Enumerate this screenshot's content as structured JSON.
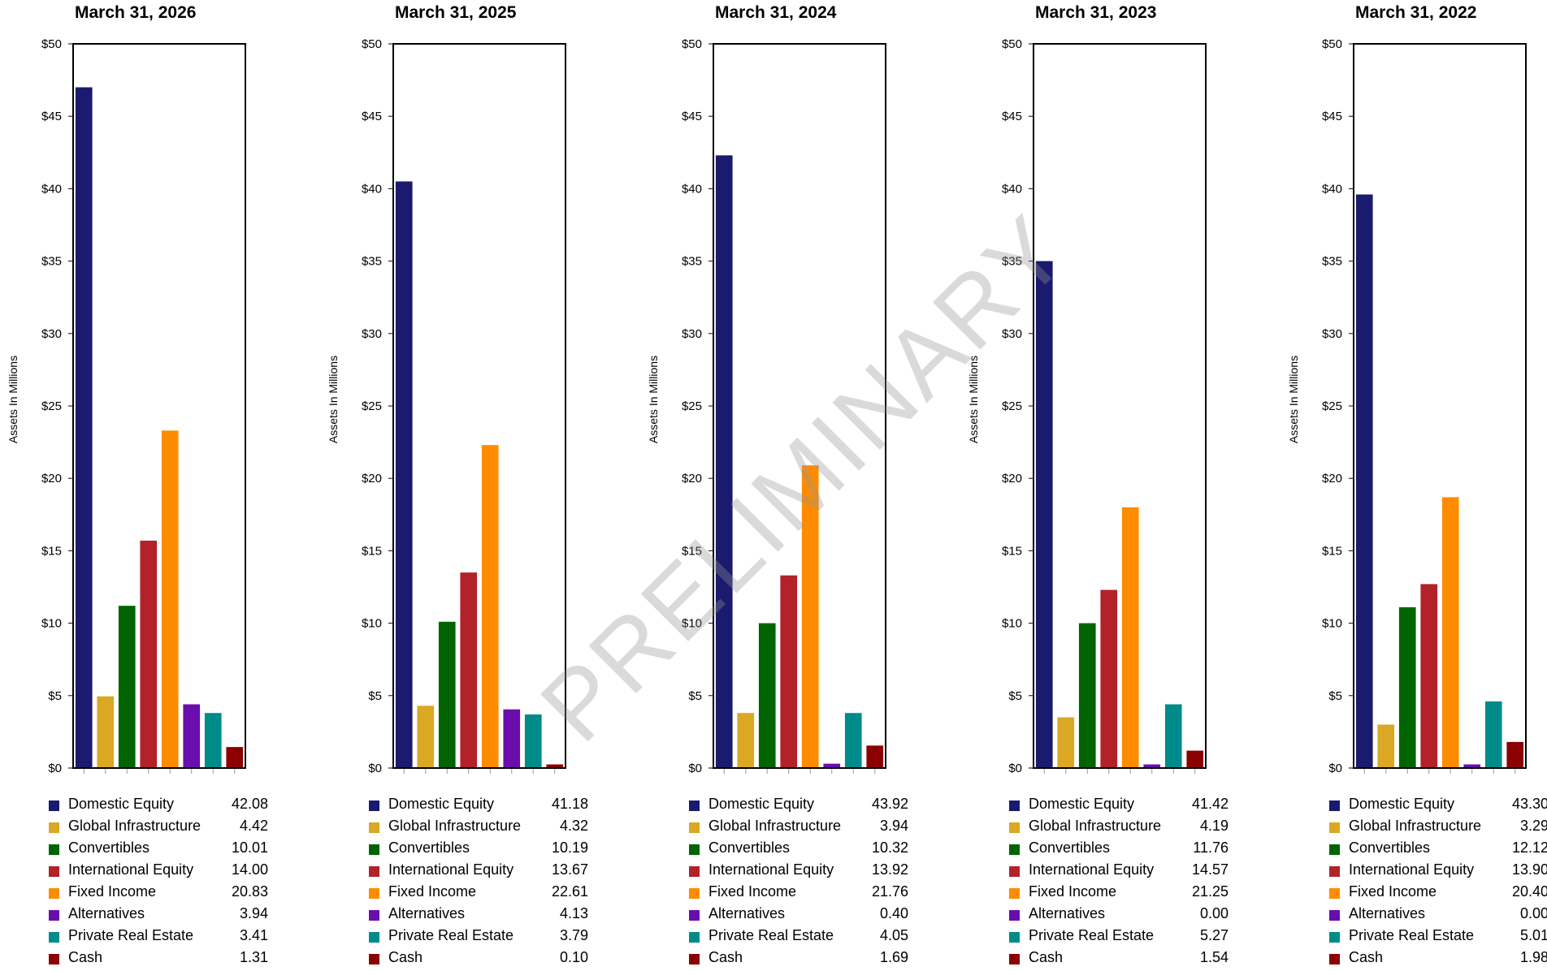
{
  "watermark": "PRELIMINARY",
  "chart_data": [
    {
      "type": "bar",
      "title": "March 31, 2026",
      "ylabel": "Assets In Millions",
      "ylim": [
        0,
        50
      ],
      "yticks": [
        "$0",
        "$5",
        "$10",
        "$15",
        "$20",
        "$25",
        "$30",
        "$35",
        "$40",
        "$45",
        "$50"
      ],
      "categories": [
        "Domestic Equity",
        "Global Infrastructure",
        "Convertibles",
        "International Equity",
        "Fixed Income",
        "Alternatives",
        "Private Real Estate",
        "Cash"
      ],
      "colors": [
        "#1a1a6e",
        "#dba824",
        "#006400",
        "#b22228",
        "#ff8c00",
        "#6a0dad",
        "#008b8b",
        "#8b0000"
      ],
      "values": [
        47.0,
        4.95,
        11.2,
        15.7,
        23.3,
        4.4,
        3.8,
        1.45
      ],
      "legend_values": [
        "42.08",
        "4.42",
        "10.01",
        "14.00",
        "20.83",
        "3.94",
        "3.41",
        "1.31"
      ]
    },
    {
      "type": "bar",
      "title": "March 31, 2025",
      "ylabel": "Assets In Millions",
      "ylim": [
        0,
        50
      ],
      "yticks": [
        "$0",
        "$5",
        "$10",
        "$15",
        "$20",
        "$25",
        "$30",
        "$35",
        "$40",
        "$45",
        "$50"
      ],
      "categories": [
        "Domestic Equity",
        "Global Infrastructure",
        "Convertibles",
        "International Equity",
        "Fixed Income",
        "Alternatives",
        "Private Real Estate",
        "Cash"
      ],
      "colors": [
        "#1a1a6e",
        "#dba824",
        "#006400",
        "#b22228",
        "#ff8c00",
        "#6a0dad",
        "#008b8b",
        "#8b0000"
      ],
      "values": [
        40.5,
        4.3,
        10.1,
        13.5,
        22.3,
        4.05,
        3.7,
        0.1
      ],
      "legend_values": [
        "41.18",
        "4.32",
        "10.19",
        "13.67",
        "22.61",
        "4.13",
        "3.79",
        "0.10"
      ]
    },
    {
      "type": "bar",
      "title": "March 31, 2024",
      "ylabel": "Assets In Millions",
      "ylim": [
        0,
        50
      ],
      "yticks": [
        "$0",
        "$5",
        "$10",
        "$15",
        "$20",
        "$25",
        "$30",
        "$35",
        "$40",
        "$45",
        "$50"
      ],
      "categories": [
        "Domestic Equity",
        "Global Infrastructure",
        "Convertibles",
        "International Equity",
        "Fixed Income",
        "Alternatives",
        "Private Real Estate",
        "Cash"
      ],
      "colors": [
        "#1a1a6e",
        "#dba824",
        "#006400",
        "#b22228",
        "#ff8c00",
        "#6a0dad",
        "#008b8b",
        "#8b0000"
      ],
      "values": [
        42.3,
        3.8,
        10.0,
        13.3,
        20.9,
        0.3,
        3.8,
        1.55
      ],
      "legend_values": [
        "43.92",
        "3.94",
        "10.32",
        "13.92",
        "21.76",
        "0.40",
        "4.05",
        "1.69"
      ]
    },
    {
      "type": "bar",
      "title": "March 31, 2023",
      "ylabel": "Assets In Millions",
      "ylim": [
        0,
        50
      ],
      "yticks": [
        "$0",
        "$5",
        "$10",
        "$15",
        "$20",
        "$25",
        "$30",
        "$35",
        "$40",
        "$45",
        "$50"
      ],
      "categories": [
        "Domestic Equity",
        "Global Infrastructure",
        "Convertibles",
        "International Equity",
        "Fixed Income",
        "Alternatives",
        "Private Real Estate",
        "Cash"
      ],
      "colors": [
        "#1a1a6e",
        "#dba824",
        "#006400",
        "#b22228",
        "#ff8c00",
        "#6a0dad",
        "#008b8b",
        "#8b0000"
      ],
      "values": [
        35.0,
        3.5,
        10.0,
        12.3,
        18.0,
        0.0,
        4.4,
        1.2
      ],
      "legend_values": [
        "41.42",
        "4.19",
        "11.76",
        "14.57",
        "21.25",
        "0.00",
        "5.27",
        "1.54"
      ]
    },
    {
      "type": "bar",
      "title": "March 31, 2022",
      "ylabel": "Assets In Millions",
      "ylim": [
        0,
        50
      ],
      "yticks": [
        "$0",
        "$5",
        "$10",
        "$15",
        "$20",
        "$25",
        "$30",
        "$35",
        "$40",
        "$45",
        "$50"
      ],
      "categories": [
        "Domestic Equity",
        "Global Infrastructure",
        "Convertibles",
        "International Equity",
        "Fixed Income",
        "Alternatives",
        "Private Real Estate",
        "Cash"
      ],
      "colors": [
        "#1a1a6e",
        "#dba824",
        "#006400",
        "#b22228",
        "#ff8c00",
        "#6a0dad",
        "#008b8b",
        "#8b0000"
      ],
      "values": [
        39.6,
        3.0,
        11.1,
        12.7,
        18.7,
        0.0,
        4.6,
        1.8
      ],
      "legend_values": [
        "43.30",
        "3.29",
        "12.12",
        "13.90",
        "20.40",
        "0.00",
        "5.01",
        "1.98"
      ]
    }
  ]
}
